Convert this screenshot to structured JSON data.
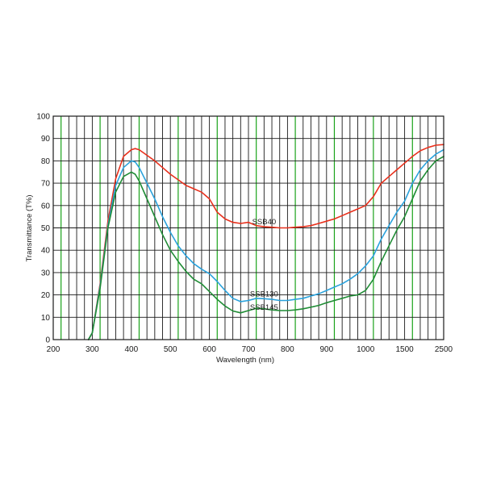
{
  "chart_data": {
    "type": "line",
    "title": "",
    "xlabel": "Wavelength (nm)",
    "ylabel": "Transmittance (T%)",
    "x_tick_labels": [
      "200",
      "300",
      "400",
      "500",
      "600",
      "700",
      "800",
      "900",
      "1000",
      "1500",
      "2500"
    ],
    "y_tick_labels": [
      "0",
      "10",
      "20",
      "30",
      "40",
      "50",
      "60",
      "70",
      "80",
      "90",
      "100"
    ],
    "ylim": [
      0,
      100
    ],
    "grid": true,
    "legend": "none",
    "grid_color": "#1a1a1a",
    "highlight_grid_color": "#1aa31a",
    "series": [
      {
        "name": "SSB40",
        "color": "#e8301c",
        "x": [
          290,
          300,
          320,
          340,
          360,
          380,
          400,
          410,
          420,
          440,
          460,
          480,
          500,
          520,
          540,
          560,
          580,
          600,
          620,
          640,
          660,
          680,
          700,
          720,
          740,
          760,
          780,
          800,
          820,
          840,
          860,
          880,
          900,
          920,
          940,
          960,
          980,
          1000,
          1100,
          1200,
          1300,
          1400,
          1500,
          1700,
          1900,
          2100,
          2300,
          2500
        ],
        "y": [
          0,
          3,
          25,
          53,
          72,
          82,
          85,
          85.5,
          85,
          82.5,
          80,
          77,
          74,
          71.5,
          69,
          67.5,
          66,
          63,
          57,
          54,
          52.5,
          52,
          52.5,
          51,
          50.5,
          50.3,
          50,
          50,
          50.3,
          50.5,
          51,
          52,
          53,
          54,
          55.5,
          57,
          58.5,
          60,
          64,
          70,
          73,
          76,
          79,
          82,
          84.5,
          86,
          87,
          87.3
        ]
      },
      {
        "name": "SSB130",
        "color": "#2aa2dc",
        "x": [
          290,
          300,
          320,
          340,
          360,
          380,
          400,
          410,
          420,
          440,
          460,
          480,
          500,
          520,
          540,
          560,
          580,
          600,
          620,
          640,
          660,
          680,
          700,
          720,
          740,
          760,
          780,
          800,
          820,
          840,
          860,
          880,
          900,
          920,
          940,
          960,
          980,
          1000,
          1100,
          1200,
          1300,
          1400,
          1500,
          1700,
          1900,
          2100,
          2300,
          2500
        ],
        "y": [
          0,
          3,
          24,
          51,
          69,
          77,
          80,
          79.5,
          77,
          70,
          63,
          55,
          48,
          42,
          37.5,
          34,
          31.5,
          29.5,
          26,
          22,
          18.5,
          17,
          17.5,
          18.5,
          18.3,
          18,
          17.5,
          17.5,
          18,
          18.5,
          19.5,
          20.5,
          22,
          23.5,
          25,
          27,
          29.5,
          33,
          37.5,
          45,
          51,
          57,
          62,
          70,
          76,
          80,
          83,
          85
        ]
      },
      {
        "name": "SSB145",
        "color": "#1f8c35",
        "x": [
          290,
          300,
          320,
          340,
          360,
          380,
          400,
          410,
          420,
          440,
          460,
          480,
          500,
          520,
          540,
          560,
          580,
          600,
          620,
          640,
          660,
          680,
          700,
          720,
          740,
          760,
          780,
          800,
          820,
          840,
          860,
          880,
          900,
          920,
          940,
          960,
          980,
          1000,
          1100,
          1200,
          1300,
          1400,
          1500,
          1700,
          1900,
          2100,
          2300,
          2500
        ],
        "y": [
          0,
          3,
          23,
          50,
          66,
          73,
          75,
          74,
          71,
          63,
          55,
          47,
          40,
          35,
          30.5,
          27,
          25,
          21.5,
          18,
          15,
          12.8,
          12,
          13,
          14,
          13.8,
          13.3,
          13,
          13,
          13.3,
          13.8,
          14.5,
          15.3,
          16.5,
          17.5,
          18.5,
          19.5,
          20,
          22,
          27,
          35,
          42,
          49,
          55,
          63,
          71,
          76,
          80,
          82
        ]
      }
    ],
    "series_label_positions": [
      "near curve at 700–800 nm",
      "near curve at 700–800 nm",
      "near curve at 700–800 nm"
    ]
  }
}
